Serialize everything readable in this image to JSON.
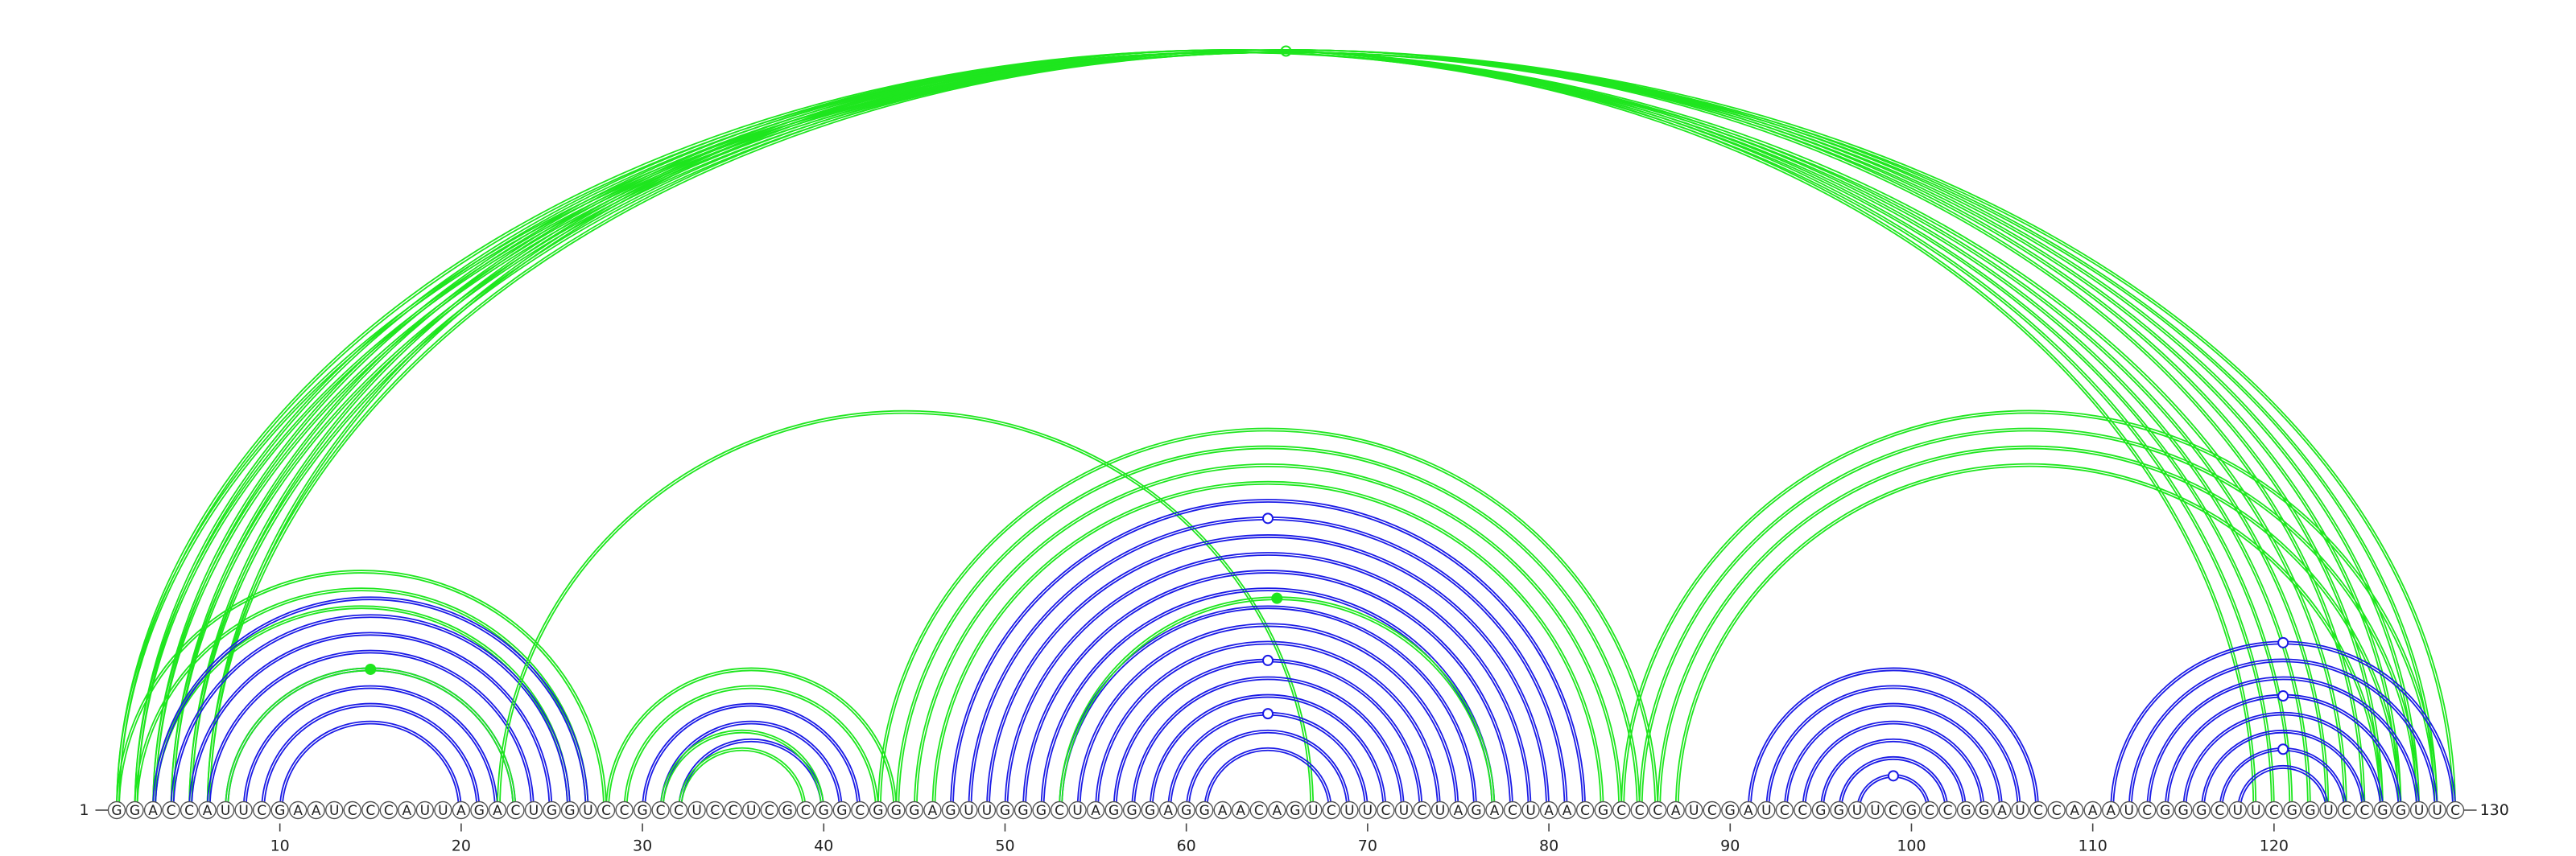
{
  "sequence": "GGACCAUUCGAAUCCCAUUAGACUGGUCCGCCUCCUCGCGGCGGGAGUUGGGCUAGGGAGGAACAGUCUUCUCUAGACUAACGCCCAUCGAUCCGGUUCGCCGGAUCCAAAUCGGGCUUCGGUCCGGUUC",
  "length": 130,
  "start_label": "1",
  "end_label": "130",
  "tick_positions": [
    10,
    20,
    30,
    40,
    50,
    60,
    70,
    80,
    90,
    100,
    110,
    120
  ],
  "tick_labels": [
    "10",
    "20",
    "30",
    "40",
    "50",
    "60",
    "70",
    "80",
    "90",
    "100",
    "110",
    "120"
  ],
  "colors": {
    "blue_arcs": "#1a1ae6",
    "green_arcs": "#1ee61e",
    "nucleotide_outline": "#555555",
    "text": "#222222"
  },
  "arc_groups": [
    {
      "color": "green",
      "pairs": [
        [
          1,
          130
        ],
        [
          2,
          129
        ],
        [
          3,
          128
        ],
        [
          4,
          127
        ],
        [
          5,
          126
        ],
        [
          6,
          125
        ]
      ],
      "markers": [
        {
          "type": "open",
          "at_pair": 0
        }
      ]
    },
    {
      "color": "green",
      "pairs": [
        [
          1,
          124
        ],
        [
          2,
          123
        ],
        [
          3,
          122
        ],
        [
          4,
          121
        ],
        [
          5,
          120
        ],
        [
          6,
          119
        ]
      ]
    },
    {
      "color": "green",
      "pairs": [
        [
          1,
          28
        ],
        [
          2,
          27
        ],
        [
          3,
          26
        ]
      ]
    },
    {
      "color": "blue",
      "pairs": [
        [
          3,
          27
        ],
        [
          4,
          26
        ],
        [
          5,
          25
        ],
        [
          6,
          24
        ],
        [
          7,
          23
        ],
        [
          8,
          22
        ],
        [
          9,
          21
        ],
        [
          10,
          20
        ]
      ]
    },
    {
      "color": "green",
      "pairs": [
        [
          7,
          23
        ]
      ],
      "markers": [
        {
          "type": "filled",
          "at_pair": 0
        }
      ]
    },
    {
      "color": "green",
      "pairs": [
        [
          22,
          67
        ]
      ]
    },
    {
      "color": "green",
      "pairs": [
        [
          28,
          44
        ],
        [
          29,
          43
        ]
      ]
    },
    {
      "color": "blue",
      "pairs": [
        [
          30,
          42
        ],
        [
          31,
          41
        ],
        [
          32,
          40
        ]
      ]
    },
    {
      "color": "green",
      "pairs": [
        [
          31,
          40
        ],
        [
          32,
          39
        ]
      ]
    },
    {
      "color": "green",
      "pairs": [
        [
          43,
          86
        ],
        [
          44,
          85
        ],
        [
          45,
          84
        ],
        [
          46,
          83
        ]
      ]
    },
    {
      "color": "blue",
      "pairs": [
        [
          47,
          82
        ],
        [
          48,
          81
        ],
        [
          49,
          80
        ],
        [
          50,
          79
        ],
        [
          51,
          78
        ],
        [
          52,
          77
        ],
        [
          53,
          76
        ],
        [
          54,
          75
        ],
        [
          55,
          74
        ],
        [
          56,
          73
        ],
        [
          57,
          72
        ],
        [
          58,
          71
        ],
        [
          59,
          70
        ],
        [
          60,
          69
        ],
        [
          61,
          68
        ]
      ],
      "markers": [
        {
          "type": "open",
          "at_pair": 1
        },
        {
          "type": "open",
          "at_pair": 9
        },
        {
          "type": "open",
          "at_pair": 12
        }
      ]
    },
    {
      "color": "green",
      "pairs": [
        [
          53,
          77
        ]
      ],
      "markers": [
        {
          "type": "filled",
          "at_pair": 0
        }
      ]
    },
    {
      "color": "green",
      "pairs": [
        [
          84,
          129
        ],
        [
          85,
          128
        ],
        [
          86,
          127
        ],
        [
          87,
          126
        ]
      ]
    },
    {
      "color": "blue",
      "pairs": [
        [
          91,
          107
        ],
        [
          92,
          106
        ],
        [
          93,
          105
        ],
        [
          94,
          104
        ],
        [
          95,
          103
        ],
        [
          96,
          102
        ],
        [
          97,
          101
        ]
      ],
      "markers": [
        {
          "type": "open",
          "at_pair": 6
        }
      ]
    },
    {
      "color": "blue",
      "pairs": [
        [
          111,
          130
        ],
        [
          112,
          129
        ],
        [
          113,
          128
        ],
        [
          114,
          127
        ],
        [
          115,
          126
        ],
        [
          116,
          125
        ],
        [
          117,
          124
        ],
        [
          118,
          123
        ]
      ],
      "markers": [
        {
          "type": "open",
          "at_pair": 0
        },
        {
          "type": "open",
          "at_pair": 3
        },
        {
          "type": "open",
          "at_pair": 6
        }
      ]
    }
  ]
}
